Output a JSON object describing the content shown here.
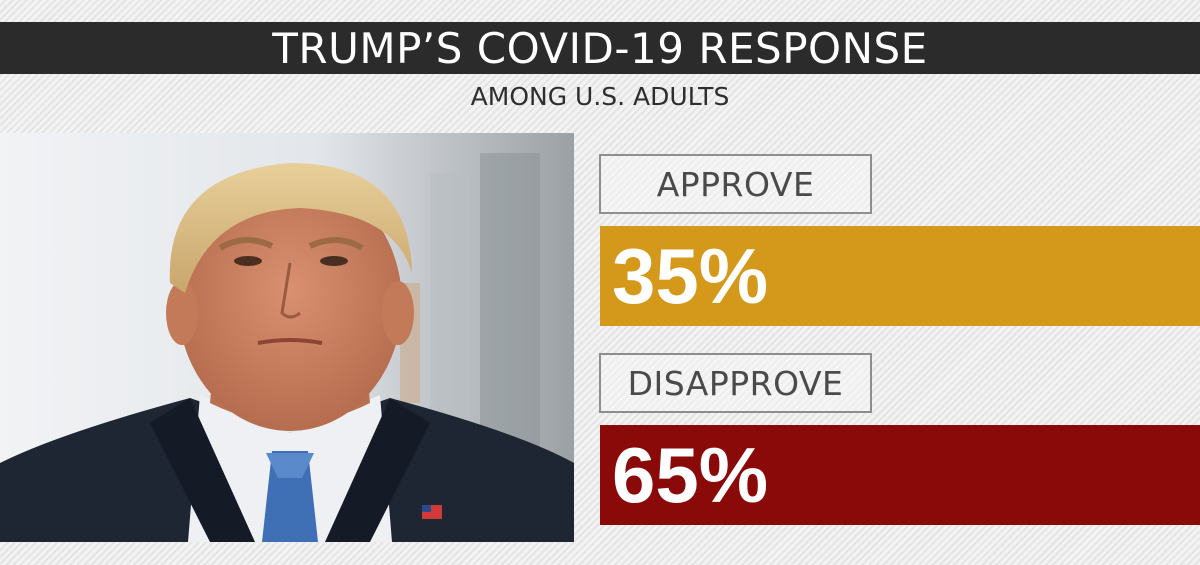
{
  "header": {
    "title": "TRUMP’S COVID-19 RESPONSE",
    "subtitle": "AMONG U.S. ADULTS"
  },
  "photo": {
    "subject": "portrait-photo"
  },
  "colors": {
    "approve": "#d4991a",
    "disapprove": "#8a0a0a",
    "title_bar": "#2b2b2b"
  },
  "chart_data": {
    "type": "bar",
    "title": "TRUMP’S COVID-19 RESPONSE",
    "subtitle": "AMONG U.S. ADULTS",
    "categories": [
      "APPROVE",
      "DISAPPROVE"
    ],
    "values": [
      35,
      65
    ],
    "value_labels": [
      "35%",
      "65%"
    ],
    "unit": "%"
  }
}
